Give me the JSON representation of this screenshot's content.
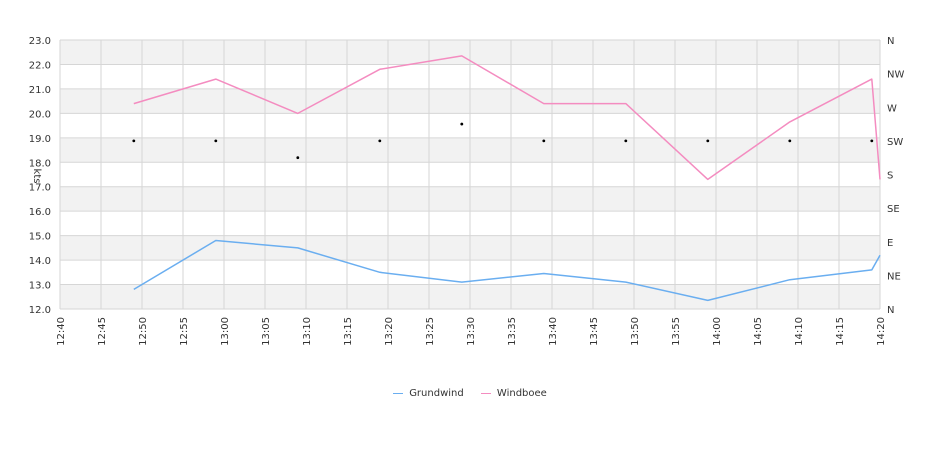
{
  "chart_data": {
    "type": "line",
    "ylabel": "kts",
    "ylim": [
      12.0,
      23.0
    ],
    "y_ticks": [
      "12.0",
      "13.0",
      "14.0",
      "15.0",
      "16.0",
      "17.0",
      "18.0",
      "19.0",
      "20.0",
      "21.0",
      "22.0",
      "23.0"
    ],
    "x_range": [
      "12:40",
      "14:20"
    ],
    "x_ticks": [
      "12:40",
      "12:45",
      "12:50",
      "12:55",
      "13:00",
      "13:05",
      "13:10",
      "13:15",
      "13:20",
      "13:25",
      "13:30",
      "13:35",
      "13:40",
      "13:45",
      "13:50",
      "13:55",
      "14:00",
      "14:05",
      "14:10",
      "14:15",
      "14:20"
    ],
    "right_axis": {
      "labels": [
        "N",
        "NE",
        "E",
        "SE",
        "S",
        "SW",
        "W",
        "NW",
        "N"
      ],
      "range_degrees": [
        0,
        360
      ]
    },
    "series": [
      {
        "name": "Grundwind",
        "color": "#6aaef0",
        "points": [
          [
            "12:49",
            12.8
          ],
          [
            "12:59",
            14.8
          ],
          [
            "13:09",
            14.5
          ],
          [
            "13:19",
            13.5
          ],
          [
            "13:29",
            13.1
          ],
          [
            "13:39",
            13.45
          ],
          [
            "13:49",
            13.1
          ],
          [
            "13:59",
            12.35
          ],
          [
            "14:09",
            13.2
          ],
          [
            "14:19",
            13.6
          ],
          [
            "14:20",
            14.2
          ]
        ]
      },
      {
        "name": "Windboee",
        "color": "#f48cc0",
        "points": [
          [
            "12:49",
            20.4
          ],
          [
            "12:59",
            21.4
          ],
          [
            "13:09",
            20.0
          ],
          [
            "13:19",
            21.8
          ],
          [
            "13:29",
            22.35
          ],
          [
            "13:39",
            20.4
          ],
          [
            "13:49",
            20.4
          ],
          [
            "13:59",
            17.3
          ],
          [
            "14:09",
            19.65
          ],
          [
            "14:19",
            21.4
          ],
          [
            "14:20",
            17.3
          ]
        ]
      }
    ],
    "direction_points": [
      [
        "12:49",
        225
      ],
      [
        "12:59",
        225
      ],
      [
        "13:09",
        202.5
      ],
      [
        "13:19",
        225
      ],
      [
        "13:29",
        247.5
      ],
      [
        "13:39",
        225
      ],
      [
        "13:49",
        225
      ],
      [
        "13:59",
        225
      ],
      [
        "14:09",
        225
      ],
      [
        "14:19",
        225
      ]
    ],
    "grid": true,
    "legend_position": "bottom"
  }
}
